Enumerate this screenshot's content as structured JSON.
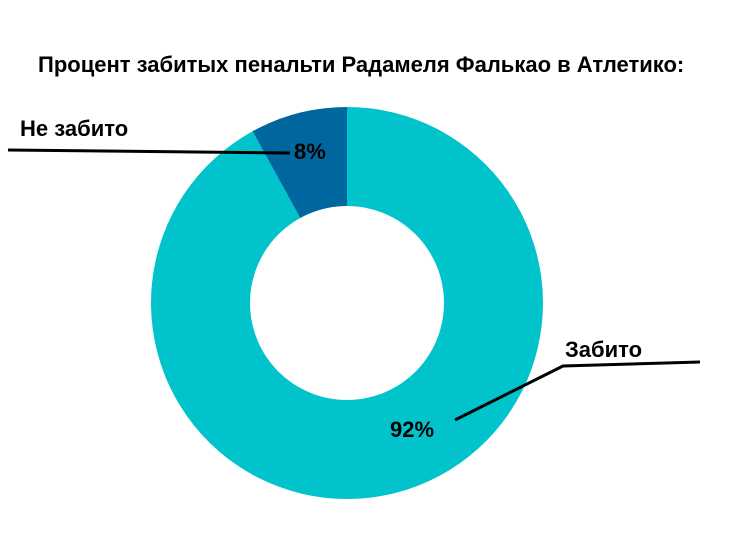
{
  "chart_data": {
    "type": "pie",
    "variant": "donut",
    "title": "Процент забитых пенальти Радамеля Фалькао в Атлетико:",
    "slices": [
      {
        "label": "Забито",
        "value": 92,
        "value_label": "92%",
        "color": "#00c3cc"
      },
      {
        "label": "Не забито",
        "value": 8,
        "value_label": "8%",
        "color": "#00679e"
      }
    ],
    "legend": "none",
    "grid": false
  }
}
